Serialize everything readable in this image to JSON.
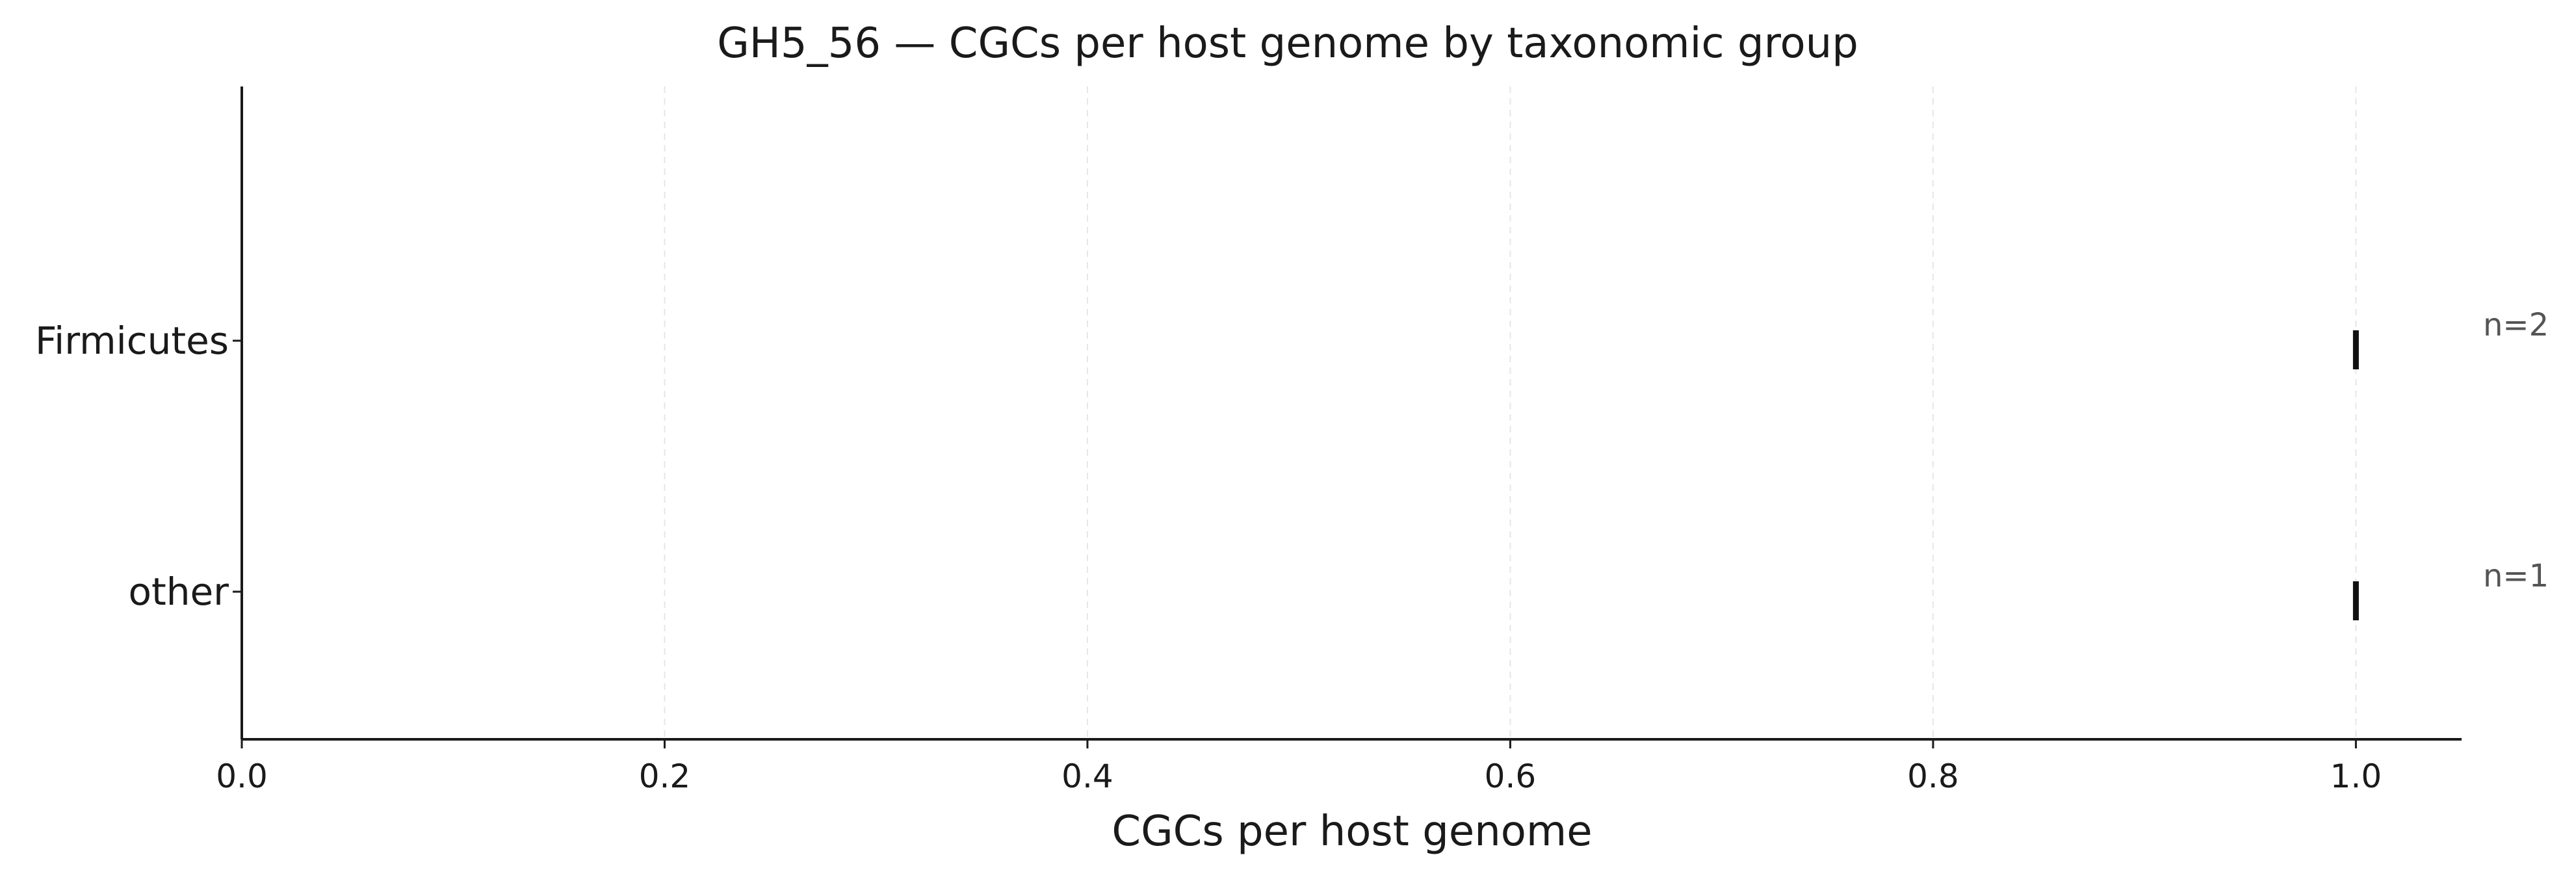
{
  "chart_data": {
    "type": "scatter",
    "title": "GH5_56 — CGCs per host genome by taxonomic group",
    "xlabel": "CGCs per host genome",
    "ylabel": "",
    "xlim": [
      0,
      1.05
    ],
    "xticks": [
      0.0,
      0.2,
      0.4,
      0.6,
      0.8,
      1.0
    ],
    "xtick_labels": [
      "0.0",
      "0.2",
      "0.4",
      "0.6",
      "0.8",
      "1.0"
    ],
    "grid": "vertical dashed",
    "categories": [
      "Firmicutes",
      "other"
    ],
    "series": [
      {
        "points": [
          {
            "category": "Firmicutes",
            "x": 1.0,
            "n_label": "n=2"
          },
          {
            "category": "other",
            "x": 1.0,
            "n_label": "n=1"
          }
        ]
      }
    ]
  }
}
